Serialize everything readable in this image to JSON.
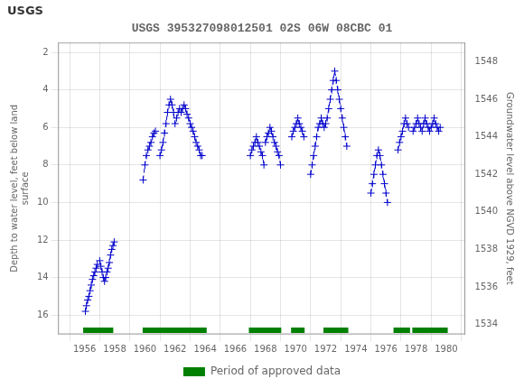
{
  "chart_data": {
    "type": "line",
    "title": "USGS 395327098012501 02S 06W 08CBC 01",
    "annotations": [
      "USGS"
    ],
    "ylabel": "Depth to water level, feet below land\nsurface",
    "y2label": "Groundwater level above NGVD 1929, feet",
    "xlim": [
      1955.3,
      1980.2
    ],
    "xticks": [
      1956,
      1958,
      1960,
      1962,
      1964,
      1966,
      1968,
      1970,
      1972,
      1974,
      1976,
      1978,
      1980
    ],
    "ylim": [
      17.0,
      1.5
    ],
    "yticks": [
      2,
      4,
      6,
      8,
      10,
      12,
      14,
      16
    ],
    "y2lim": [
      1533.5,
      1549.0
    ],
    "y2ticks": [
      1534,
      1536,
      1538,
      1540,
      1542,
      1544,
      1546,
      1548
    ],
    "grid": true,
    "legend": "bottom",
    "series": [
      {
        "type": "line",
        "color": "#0000CC",
        "line_style": "dashed",
        "marker": "plus",
        "x": [
          1956.05,
          1956.12,
          1956.2,
          1956.28,
          1956.36,
          1956.44,
          1956.52,
          1956.6,
          1956.68,
          1956.76,
          1956.84
        ],
        "values": [
          15.8,
          15.5,
          15.2,
          15.0,
          14.7,
          14.4,
          14.1,
          13.9,
          13.7,
          13.5,
          13.3
        ]
      },
      {
        "type": "line",
        "color": "#0000CC",
        "line_style": "dashed",
        "marker": "plus",
        "x": [
          1957.0,
          1957.08,
          1957.16,
          1957.24,
          1957.32,
          1957.4,
          1957.48,
          1957.56,
          1957.64,
          1957.72,
          1957.8,
          1957.88,
          1957.96
        ],
        "values": [
          13.1,
          13.4,
          13.7,
          14.0,
          14.2,
          14.0,
          13.7,
          13.5,
          13.2,
          12.8,
          12.5,
          12.3,
          12.1
        ]
      },
      {
        "type": "line",
        "color": "#0000CC",
        "line_style": "dashed",
        "marker": "plus",
        "x": [
          1959.88,
          1960.0,
          1960.1,
          1960.2,
          1960.3,
          1960.4,
          1960.5,
          1960.6,
          1960.7
        ],
        "values": [
          8.8,
          8.0,
          7.5,
          7.2,
          7.0,
          6.8,
          6.5,
          6.3,
          6.2
        ]
      },
      {
        "type": "line",
        "color": "#0000CC",
        "line_style": "dashed",
        "marker": "plus",
        "x": [
          1961.0,
          1961.1,
          1961.2,
          1961.3,
          1961.4,
          1961.5,
          1961.6,
          1961.7,
          1961.8,
          1961.9,
          1962.0,
          1962.1,
          1962.2,
          1962.3,
          1962.4,
          1962.5,
          1962.6,
          1962.7,
          1962.8,
          1962.9,
          1963.0,
          1963.1,
          1963.2,
          1963.3,
          1963.4,
          1963.5,
          1963.6,
          1963.7,
          1963.8
        ],
        "values": [
          7.5,
          7.2,
          6.8,
          6.3,
          5.8,
          5.2,
          4.8,
          4.5,
          4.8,
          5.2,
          5.8,
          5.5,
          5.2,
          5.0,
          5.2,
          5.0,
          4.8,
          5.0,
          5.3,
          5.5,
          5.8,
          6.0,
          6.2,
          6.5,
          6.8,
          7.0,
          7.2,
          7.5,
          7.5
        ]
      },
      {
        "type": "line",
        "color": "#0000CC",
        "line_style": "dashed",
        "marker": "plus",
        "x": [
          1967.0,
          1967.1,
          1967.2,
          1967.3,
          1967.4,
          1967.5,
          1967.6,
          1967.7,
          1967.8,
          1967.9
        ],
        "values": [
          7.5,
          7.2,
          7.0,
          6.8,
          6.5,
          6.8,
          7.0,
          7.3,
          7.5,
          8.0
        ]
      },
      {
        "type": "line",
        "color": "#0000CC",
        "line_style": "dashed",
        "marker": "plus",
        "x": [
          1968.0,
          1968.1,
          1968.2,
          1968.3,
          1968.4,
          1968.5,
          1968.6,
          1968.7,
          1968.8,
          1968.9,
          1969.0
        ],
        "values": [
          6.8,
          6.5,
          6.3,
          6.0,
          6.2,
          6.5,
          6.8,
          7.0,
          7.3,
          7.5,
          8.0
        ]
      },
      {
        "type": "line",
        "color": "#0000CC",
        "line_style": "dashed",
        "marker": "plus",
        "x": [
          1969.75,
          1969.85,
          1969.95,
          1970.05,
          1970.15,
          1970.25,
          1970.35,
          1970.45,
          1970.55
        ],
        "values": [
          6.5,
          6.2,
          6.0,
          5.8,
          5.5,
          5.8,
          6.0,
          6.2,
          6.5
        ]
      },
      {
        "type": "line",
        "color": "#0000CC",
        "line_style": "dashed",
        "marker": "plus",
        "x": [
          1971.0,
          1971.1,
          1971.2,
          1971.3,
          1971.4,
          1971.5,
          1971.6,
          1971.7,
          1971.8
        ],
        "values": [
          8.5,
          8.0,
          7.5,
          7.0,
          6.5,
          6.0,
          5.8,
          5.5,
          5.8
        ]
      },
      {
        "type": "line",
        "color": "#0000CC",
        "line_style": "dashed",
        "marker": "plus",
        "x": [
          1971.9,
          1972.0,
          1972.1,
          1972.2,
          1972.3,
          1972.4,
          1972.5,
          1972.6,
          1972.7,
          1972.8,
          1972.9,
          1973.0,
          1973.1,
          1973.2,
          1973.3,
          1973.4
        ],
        "values": [
          6.0,
          5.8,
          5.5,
          5.0,
          4.5,
          4.0,
          3.5,
          3.0,
          3.5,
          4.0,
          4.5,
          5.0,
          5.5,
          6.0,
          6.5,
          7.0
        ]
      },
      {
        "type": "line",
        "color": "#0000CC",
        "line_style": "dashed",
        "marker": "plus",
        "x": [
          1975.0,
          1975.1,
          1975.2,
          1975.3,
          1975.4,
          1975.5,
          1975.6,
          1975.7,
          1975.8,
          1975.9,
          1976.0,
          1976.1
        ],
        "values": [
          9.5,
          9.0,
          8.5,
          8.0,
          7.5,
          7.2,
          7.5,
          8.0,
          8.5,
          9.0,
          9.5,
          10.0
        ]
      },
      {
        "type": "line",
        "color": "#0000CC",
        "line_style": "dashed",
        "marker": "plus",
        "x": [
          1976.8,
          1976.9,
          1977.0,
          1977.1,
          1977.2,
          1977.3,
          1977.4,
          1977.5
        ],
        "values": [
          7.2,
          6.8,
          6.5,
          6.2,
          5.8,
          5.5,
          5.8,
          6.0
        ]
      },
      {
        "type": "line",
        "color": "#0000CC",
        "line_style": "dashed",
        "marker": "plus",
        "x": [
          1977.8,
          1977.9,
          1978.0,
          1978.1,
          1978.2,
          1978.3,
          1978.4,
          1978.5,
          1978.6,
          1978.7,
          1978.8,
          1978.9,
          1979.0,
          1979.1,
          1979.2,
          1979.3,
          1979.4,
          1979.5,
          1979.6
        ],
        "values": [
          6.2,
          6.0,
          5.8,
          5.5,
          5.8,
          6.0,
          6.2,
          5.8,
          5.5,
          5.8,
          6.0,
          6.2,
          6.0,
          5.8,
          5.5,
          5.8,
          6.0,
          6.2,
          6.0
        ]
      },
      {
        "name": "Period of approved data",
        "type": "bar",
        "color": "#008000",
        "periods": [
          [
            1955.9,
            1957.9
          ],
          [
            1959.85,
            1964.1
          ],
          [
            1966.9,
            1969.05
          ],
          [
            1969.7,
            1970.6
          ],
          [
            1971.85,
            1973.5
          ],
          [
            1976.5,
            1977.6
          ],
          [
            1977.75,
            1980.1
          ]
        ]
      }
    ]
  }
}
